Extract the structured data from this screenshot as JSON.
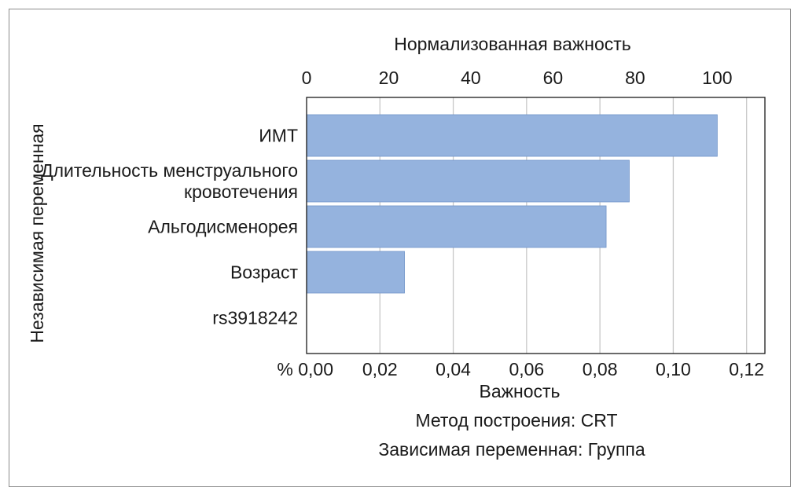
{
  "chart_data": {
    "type": "bar",
    "orientation": "horizontal",
    "title": "",
    "top_axis_label": "Нормализованная важность",
    "top_ticks": [
      "0",
      "20",
      "40",
      "60",
      "80",
      "100"
    ],
    "top_tick_values": [
      0,
      20,
      40,
      60,
      80,
      100
    ],
    "bottom_axis_label": "Важность",
    "bottom_ticks": [
      "% 0,00",
      "0,02",
      "0,04",
      "0,06",
      "0,08",
      "0,10",
      "0,12"
    ],
    "bottom_tick_values": [
      0,
      0.02,
      0.04,
      0.06,
      0.08,
      0.1,
      0.12
    ],
    "xlim": [
      0,
      0.125
    ],
    "ylabel": "Независимая переменная",
    "categories": [
      [
        "ИМТ"
      ],
      [
        "Длительность менструального",
        "кровотечения"
      ],
      [
        "Альгодисменорея"
      ],
      [
        "Возраст"
      ],
      [
        "rs3918242"
      ]
    ],
    "values": [
      0.112,
      0.088,
      0.0817,
      0.0267,
      0
    ],
    "bar_color": "#95b3de",
    "grid": true,
    "footer_lines": [
      "Метод построения: CRT",
      "Зависимая переменная: Группа"
    ]
  }
}
